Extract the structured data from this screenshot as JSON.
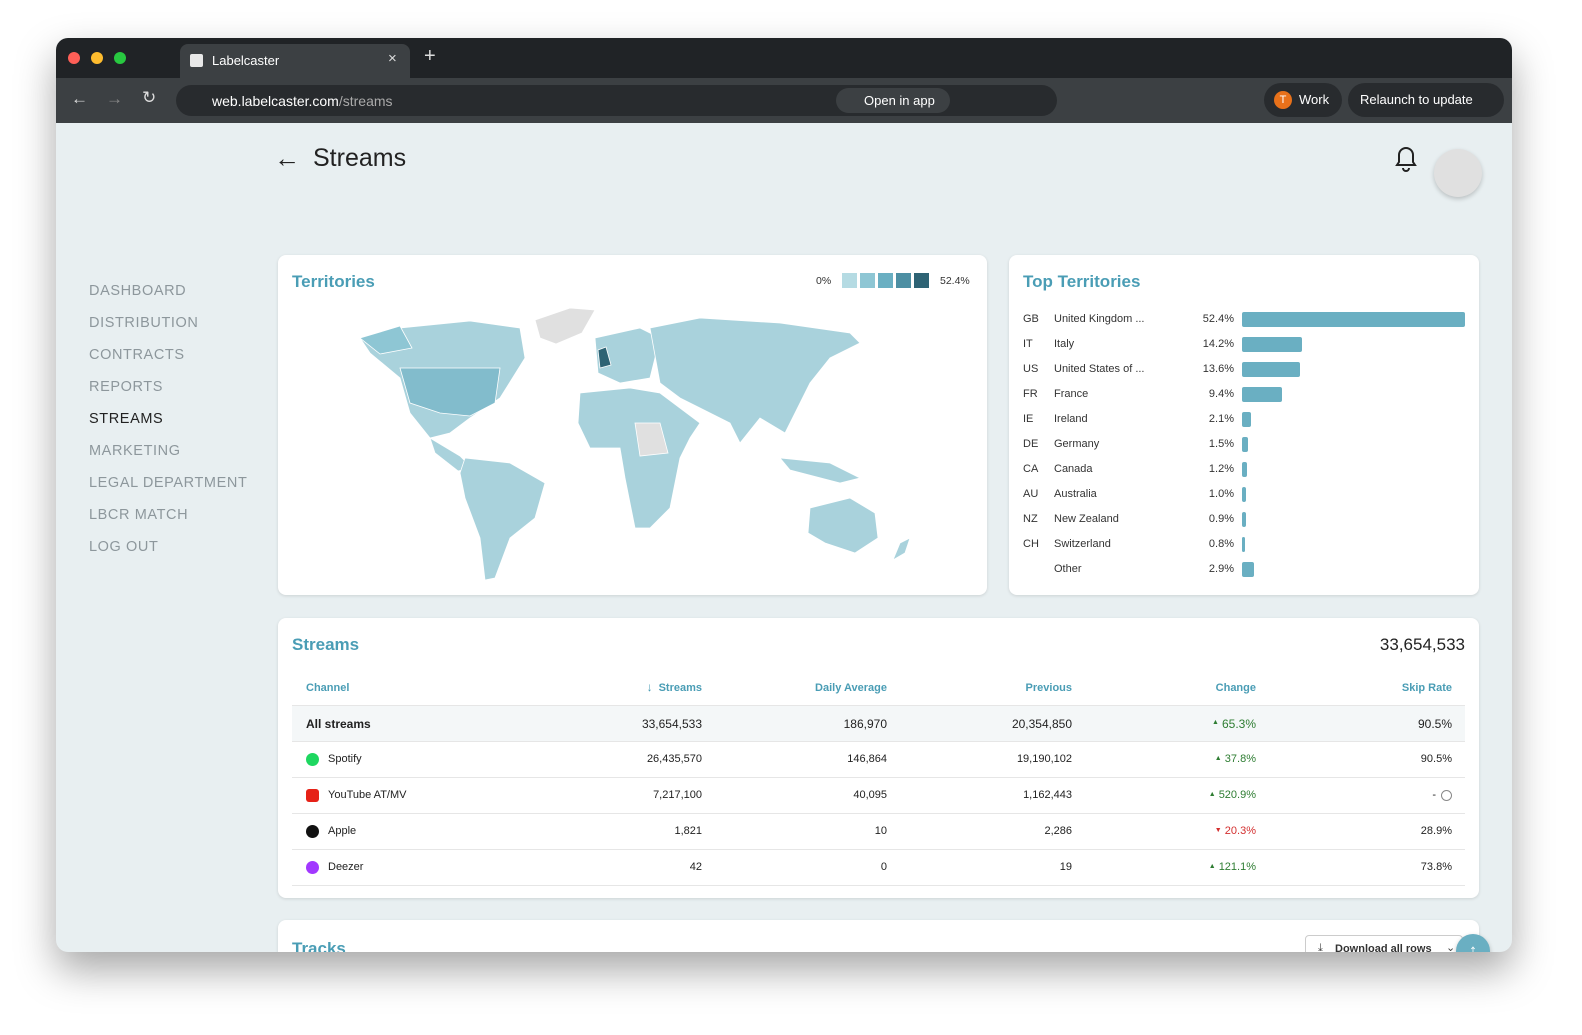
{
  "browser": {
    "tab_title": "Labelcaster",
    "url_host": "web.labelcaster.com",
    "url_path": "/streams",
    "open_in_app": "Open in app",
    "profile_initial": "T",
    "profile": "Work",
    "relaunch": "Relaunch to update"
  },
  "sidebar": {
    "items": [
      "DASHBOARD",
      "DISTRIBUTION",
      "CONTRACTS",
      "REPORTS",
      "STREAMS",
      "MARKETING",
      "LEGAL DEPARTMENT",
      "LBCR MATCH",
      "LOG OUT"
    ],
    "active": 4
  },
  "header": {
    "title": "Streams"
  },
  "territories": {
    "title": "Territories",
    "legend_min": "0%",
    "legend_max": "52.4%"
  },
  "top_territories": {
    "title": "Top Territories",
    "rows": [
      {
        "code": "GB",
        "name": "United Kingdom ...",
        "share": {
          "value": 52.4,
          "label": "52.4%"
        }
      },
      {
        "code": "IT",
        "name": "Italy",
        "share": {
          "value": 14.2,
          "label": "14.2%"
        }
      },
      {
        "code": "US",
        "name": "United States of ...",
        "share": {
          "value": 13.6,
          "label": "13.6%"
        }
      },
      {
        "code": "FR",
        "name": "France",
        "share": {
          "value": 9.4,
          "label": "9.4%"
        }
      },
      {
        "code": "IE",
        "name": "Ireland",
        "share": {
          "value": 2.1,
          "label": "2.1%"
        }
      },
      {
        "code": "DE",
        "name": "Germany",
        "share": {
          "value": 1.5,
          "label": "1.5%"
        }
      },
      {
        "code": "CA",
        "name": "Canada",
        "share": {
          "value": 1.2,
          "label": "1.2%"
        }
      },
      {
        "code": "AU",
        "name": "Australia",
        "share": {
          "value": 1.0,
          "label": "1.0%"
        }
      },
      {
        "code": "NZ",
        "name": "New Zealand",
        "share": {
          "value": 0.9,
          "label": "0.9%"
        }
      },
      {
        "code": "CH",
        "name": "Switzerland",
        "share": {
          "value": 0.8,
          "label": "0.8%"
        }
      },
      {
        "name": "Other",
        "share": {
          "value": 2.9,
          "label": "2.9%"
        }
      }
    ]
  },
  "streams": {
    "title": "Streams",
    "total": "33,654,533",
    "columns": [
      "Channel",
      "Streams",
      "Daily Average",
      "Previous",
      "Change",
      "Skip Rate"
    ],
    "sort_column": 1,
    "rows": [
      {
        "cells": [
          "All streams",
          "33,654,533",
          "186,970",
          "20,354,850",
          "65.3%",
          "90.5%"
        ],
        "change_direction": "up"
      },
      {
        "cells": [
          "Spotify",
          "26,435,570",
          "146,864",
          "19,190,102",
          "37.8%",
          "90.5%"
        ],
        "change_direction": "up",
        "icon_color": "#1ed760"
      },
      {
        "cells": [
          "YouTube AT/MV",
          "7,217,100",
          "40,095",
          "1,162,443",
          "520.9%",
          "-"
        ],
        "change_direction": "up",
        "icon_color": "#e62117",
        "skip_info": true
      },
      {
        "cells": [
          "Apple",
          "1,821",
          "10",
          "2,286",
          "20.3%",
          "28.9%"
        ],
        "change_direction": "down",
        "icon_color": "#111111"
      },
      {
        "cells": [
          "Deezer",
          "42",
          "0",
          "19",
          "121.1%",
          "73.8%"
        ],
        "change_direction": "up",
        "icon_color": "#a238ff"
      }
    ]
  },
  "tracks": {
    "title": "Tracks",
    "download": "Download all rows"
  }
}
